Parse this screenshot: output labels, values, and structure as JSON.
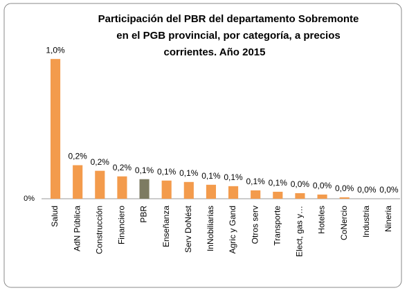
{
  "chart_data": {
    "type": "bar",
    "title": [
      "Participación del PBR del departamento Sobremonte",
      "en el PGB provincial, por categoría, a precios",
      "corrientes. Año 2015"
    ],
    "categories": [
      "Salud",
      "AdN Pública",
      "Construcción",
      "Financiero",
      "PBR",
      "Enseñanza",
      "Serv DoNést",
      "InNobiliarias",
      "Agric y Gand",
      "Otros serv",
      "Transporte",
      "Elect, gas y…",
      "Hoteles",
      "CoNercio",
      "Industria",
      "Nineria"
    ],
    "values": [
      1.0,
      0.24,
      0.2,
      0.16,
      0.14,
      0.13,
      0.12,
      0.1,
      0.09,
      0.06,
      0.05,
      0.04,
      0.03,
      0.01,
      0.0,
      0.0
    ],
    "value_labels": [
      "1,0%",
      "0,2%",
      "0,2%",
      "0,2%",
      "0,1%",
      "0,1%",
      "0,1%",
      "0,1%",
      "0,1%",
      "0,1%",
      "0,1%",
      "0,0%",
      "0,0%",
      "0,0%",
      "0,0%",
      "0,0%"
    ],
    "colors": [
      "#f39b4c",
      "#f39b4c",
      "#f39b4c",
      "#f39b4c",
      "#7d7b62",
      "#f39b4c",
      "#f39b4c",
      "#f39b4c",
      "#f39b4c",
      "#f39b4c",
      "#f39b4c",
      "#f39b4c",
      "#f39b4c",
      "#f39b4c",
      "#f39b4c",
      "#f39b4c"
    ],
    "ylim": [
      0,
      1.1
    ],
    "yticks": [
      {
        "value": 0,
        "label": "0%"
      }
    ]
  }
}
